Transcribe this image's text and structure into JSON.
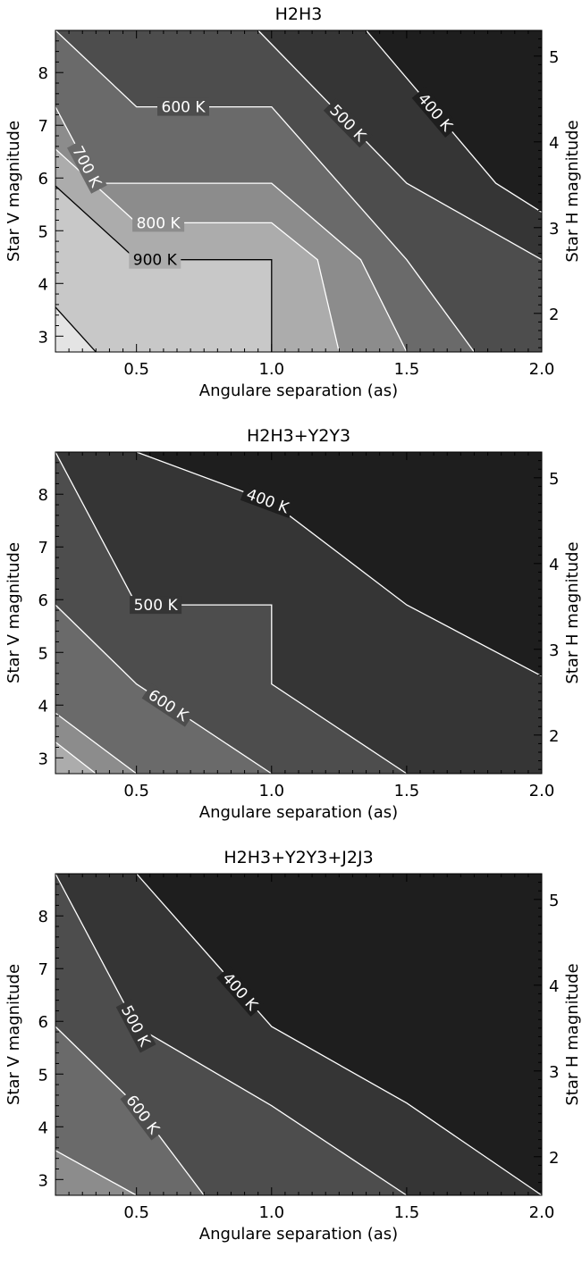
{
  "chart_data": [
    {
      "type": "contour",
      "title": "H2H3",
      "xlabel": "Angulare separation (as)",
      "ylabel": "Star V magnitude",
      "y2label": "Star H magnitude",
      "x_ticks": [
        "0.5",
        "1.0",
        "1.5",
        "2.0"
      ],
      "y_ticks": [
        "3",
        "4",
        "5",
        "6",
        "7",
        "8"
      ],
      "y2_ticks": [
        "2",
        "3",
        "4",
        "5"
      ],
      "xlim": [
        0.2,
        2.0
      ],
      "ylim": [
        2.7,
        8.8
      ],
      "y2lim": [
        1.55,
        5.3
      ],
      "grey_levels": [
        "#1e1e1e",
        "#353535",
        "#4d4d4d",
        "#6a6a6a",
        "#8c8c8c",
        "#acacac",
        "#c8c8c8",
        "#e4e4e4"
      ],
      "contours": [
        {
          "label": "400 K",
          "line_color": "#ffffff",
          "points": [
            [
              1.35,
              8.8
            ],
            [
              1.83,
              5.9
            ],
            [
              2.0,
              5.35
            ]
          ]
        },
        {
          "label": "500 K",
          "line_color": "#ffffff",
          "points": [
            [
              0.95,
              8.8
            ],
            [
              1.5,
              5.9
            ],
            [
              2.0,
              4.45
            ]
          ]
        },
        {
          "label": "600 K",
          "line_color": "#ffffff",
          "points": [
            [
              0.2,
              8.8
            ],
            [
              0.5,
              7.35
            ],
            [
              1.0,
              7.35
            ],
            [
              1.5,
              4.45
            ],
            [
              1.75,
              2.7
            ]
          ]
        },
        {
          "label": "700 K",
          "line_color": "#ffffff",
          "points": [
            [
              0.2,
              7.35
            ],
            [
              0.35,
              5.9
            ],
            [
              1.0,
              5.9
            ],
            [
              1.33,
              4.45
            ],
            [
              1.5,
              2.7
            ]
          ]
        },
        {
          "label": "800 K",
          "line_color": "#ffffff",
          "points": [
            [
              0.2,
              6.55
            ],
            [
              0.5,
              5.15
            ],
            [
              1.0,
              5.15
            ],
            [
              1.17,
              4.45
            ],
            [
              1.25,
              2.7
            ]
          ]
        },
        {
          "label": "900 K",
          "line_color": "#000000",
          "points": [
            [
              0.2,
              5.85
            ],
            [
              0.5,
              4.45
            ],
            [
              1.0,
              4.45
            ],
            [
              1.0,
              2.7
            ]
          ]
        },
        {
          "label": "",
          "line_color": "#000000",
          "points": [
            [
              0.2,
              3.55
            ],
            [
              0.35,
              2.7
            ]
          ]
        }
      ]
    },
    {
      "type": "contour",
      "title": "H2H3+Y2Y3",
      "xlabel": "Angulare separation (as)",
      "ylabel": "Star V magnitude",
      "y2label": "Star H magnitude",
      "x_ticks": [
        "0.5",
        "1.0",
        "1.5",
        "2.0"
      ],
      "y_ticks": [
        "3",
        "4",
        "5",
        "6",
        "7",
        "8"
      ],
      "y2_ticks": [
        "2",
        "3",
        "4",
        "5"
      ],
      "xlim": [
        0.2,
        2.0
      ],
      "ylim": [
        2.7,
        8.8
      ],
      "y2lim": [
        1.55,
        5.3
      ],
      "grey_levels": [
        "#1e1e1e",
        "#353535",
        "#4d4d4d",
        "#6a6a6a",
        "#8c8c8c",
        "#acacac"
      ],
      "contours": [
        {
          "label": "400 K",
          "line_color": "#ffffff",
          "points": [
            [
              0.5,
              8.8
            ],
            [
              1.0,
              7.85
            ],
            [
              1.5,
              5.9
            ],
            [
              2.0,
              4.55
            ]
          ]
        },
        {
          "label": "500 K",
          "line_color": "#ffffff",
          "points": [
            [
              0.2,
              8.8
            ],
            [
              0.5,
              5.9
            ],
            [
              1.0,
              5.9
            ],
            [
              1.0,
              4.4
            ],
            [
              1.5,
              2.7
            ]
          ]
        },
        {
          "label": "600 K",
          "line_color": "#ffffff",
          "points": [
            [
              0.2,
              5.9
            ],
            [
              0.5,
              4.4
            ],
            [
              1.0,
              2.7
            ]
          ]
        },
        {
          "label": "",
          "line_color": "#ffffff",
          "points": [
            [
              0.2,
              3.85
            ],
            [
              0.5,
              2.7
            ]
          ]
        },
        {
          "label": "",
          "line_color": "#ffffff",
          "points": [
            [
              0.2,
              3.3
            ],
            [
              0.35,
              2.7
            ]
          ]
        }
      ]
    },
    {
      "type": "contour",
      "title": "H2H3+Y2Y3+J2J3",
      "xlabel": "Angulare separation (as)",
      "ylabel": "Star V magnitude",
      "y2label": "Star H magnitude",
      "x_ticks": [
        "0.5",
        "1.0",
        "1.5",
        "2.0"
      ],
      "y_ticks": [
        "3",
        "4",
        "5",
        "6",
        "7",
        "8"
      ],
      "y2_ticks": [
        "2",
        "3",
        "4",
        "5"
      ],
      "xlim": [
        0.2,
        2.0
      ],
      "ylim": [
        2.7,
        8.8
      ],
      "y2lim": [
        1.55,
        5.3
      ],
      "grey_levels": [
        "#1e1e1e",
        "#353535",
        "#4d4d4d",
        "#6a6a6a",
        "#8c8c8c"
      ],
      "contours": [
        {
          "label": "400 K",
          "line_color": "#ffffff",
          "points": [
            [
              0.5,
              8.8
            ],
            [
              1.0,
              5.9
            ],
            [
              1.5,
              4.45
            ],
            [
              2.0,
              2.7
            ]
          ]
        },
        {
          "label": "500 K",
          "line_color": "#ffffff",
          "points": [
            [
              0.2,
              8.8
            ],
            [
              0.5,
              5.9
            ],
            [
              1.0,
              4.4
            ],
            [
              1.5,
              2.7
            ]
          ]
        },
        {
          "label": "600 K",
          "line_color": "#ffffff",
          "points": [
            [
              0.2,
              5.9
            ],
            [
              0.5,
              4.4
            ],
            [
              0.75,
              2.7
            ]
          ]
        },
        {
          "label": "",
          "line_color": "#ffffff",
          "points": [
            [
              0.2,
              3.55
            ],
            [
              0.5,
              2.7
            ]
          ]
        }
      ]
    }
  ]
}
